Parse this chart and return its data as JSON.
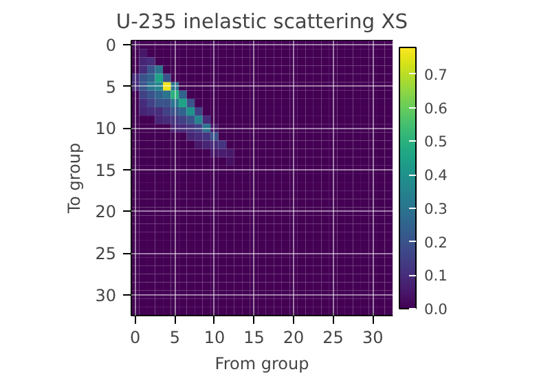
{
  "chart_data": {
    "type": "heatmap",
    "title": "U-235 inelastic scattering XS",
    "xlabel": "From group",
    "ylabel": "To group",
    "categories": [
      "0",
      null,
      null,
      null,
      null,
      "5",
      null,
      null,
      null,
      null,
      "10",
      null,
      null,
      null,
      null,
      "15",
      null,
      null,
      null,
      null,
      "20",
      null,
      null,
      null,
      null,
      "25",
      null,
      null,
      null,
      null,
      "30",
      null,
      null
    ],
    "y_categories": [
      "0",
      null,
      null,
      null,
      null,
      "5",
      null,
      null,
      null,
      null,
      "10",
      null,
      null,
      null,
      null,
      "15",
      null,
      null,
      null,
      null,
      "20",
      null,
      null,
      null,
      null,
      "25",
      null,
      null,
      null,
      null,
      "30",
      null,
      null
    ],
    "cells": [
      [
        0.02,
        0,
        0,
        0,
        0,
        0,
        0,
        0,
        0,
        0,
        0,
        0,
        0,
        0,
        0,
        0,
        0,
        0,
        0,
        0,
        0,
        0,
        0,
        0,
        0,
        0,
        0,
        0,
        0,
        0,
        0,
        0,
        0
      ],
      [
        0,
        0.05,
        0,
        0,
        0,
        0,
        0,
        0,
        0,
        0,
        0,
        0,
        0,
        0,
        0,
        0,
        0,
        0,
        0,
        0,
        0,
        0,
        0,
        0,
        0,
        0,
        0,
        0,
        0,
        0,
        0,
        0,
        0
      ],
      [
        0,
        0.08,
        0.1,
        0,
        0,
        0,
        0,
        0,
        0,
        0,
        0,
        0,
        0,
        0,
        0,
        0,
        0,
        0,
        0,
        0,
        0,
        0,
        0,
        0,
        0,
        0,
        0,
        0,
        0,
        0,
        0,
        0,
        0
      ],
      [
        0,
        0.1,
        0.2,
        0.3,
        0,
        0,
        0,
        0,
        0,
        0,
        0,
        0,
        0,
        0,
        0,
        0,
        0,
        0,
        0,
        0,
        0,
        0,
        0,
        0,
        0,
        0,
        0,
        0,
        0,
        0,
        0,
        0,
        0
      ],
      [
        0.1,
        0.2,
        0.25,
        0.45,
        0.2,
        0,
        0,
        0,
        0,
        0,
        0,
        0,
        0,
        0,
        0,
        0,
        0,
        0,
        0,
        0,
        0,
        0,
        0,
        0,
        0,
        0,
        0,
        0,
        0,
        0,
        0,
        0,
        0
      ],
      [
        0.1,
        0.2,
        0.3,
        0.35,
        0.76,
        0.3,
        0,
        0,
        0,
        0,
        0,
        0,
        0,
        0,
        0,
        0,
        0,
        0,
        0,
        0,
        0,
        0,
        0,
        0,
        0,
        0,
        0,
        0,
        0,
        0,
        0,
        0,
        0
      ],
      [
        0,
        0.15,
        0.2,
        0.25,
        0.3,
        0.5,
        0.25,
        0,
        0,
        0,
        0,
        0,
        0,
        0,
        0,
        0,
        0,
        0,
        0,
        0,
        0,
        0,
        0,
        0,
        0,
        0,
        0,
        0,
        0,
        0,
        0,
        0,
        0
      ],
      [
        0,
        0.1,
        0.15,
        0.2,
        0.2,
        0.3,
        0.45,
        0.2,
        0,
        0,
        0,
        0,
        0,
        0,
        0,
        0,
        0,
        0,
        0,
        0,
        0,
        0,
        0,
        0,
        0,
        0,
        0,
        0,
        0,
        0,
        0,
        0,
        0
      ],
      [
        0,
        0.08,
        0.1,
        0.1,
        0.15,
        0.2,
        0.25,
        0.4,
        0.15,
        0,
        0,
        0,
        0,
        0,
        0,
        0,
        0,
        0,
        0,
        0,
        0,
        0,
        0,
        0,
        0,
        0,
        0,
        0,
        0,
        0,
        0,
        0,
        0
      ],
      [
        0,
        0,
        0,
        0.08,
        0.1,
        0.12,
        0.15,
        0.2,
        0.35,
        0.1,
        0,
        0,
        0,
        0,
        0,
        0,
        0,
        0,
        0,
        0,
        0,
        0,
        0,
        0,
        0,
        0,
        0,
        0,
        0,
        0,
        0,
        0,
        0
      ],
      [
        0,
        0,
        0,
        0,
        0,
        0.08,
        0.1,
        0.12,
        0.15,
        0.3,
        0.05,
        0,
        0,
        0,
        0,
        0,
        0,
        0,
        0,
        0,
        0,
        0,
        0,
        0,
        0,
        0,
        0,
        0,
        0,
        0,
        0,
        0,
        0
      ],
      [
        0,
        0,
        0,
        0,
        0,
        0,
        0,
        0.08,
        0.1,
        0.12,
        0.2,
        0,
        0,
        0,
        0,
        0,
        0,
        0,
        0,
        0,
        0,
        0,
        0,
        0,
        0,
        0,
        0,
        0,
        0,
        0,
        0,
        0,
        0
      ],
      [
        0,
        0,
        0,
        0,
        0,
        0,
        0,
        0,
        0.05,
        0.08,
        0.1,
        0.12,
        0,
        0,
        0,
        0,
        0,
        0,
        0,
        0,
        0,
        0,
        0,
        0,
        0,
        0,
        0,
        0,
        0,
        0,
        0,
        0,
        0
      ],
      [
        0,
        0,
        0,
        0,
        0,
        0,
        0,
        0,
        0,
        0,
        0.05,
        0.06,
        0.05,
        0,
        0,
        0,
        0,
        0,
        0,
        0,
        0,
        0,
        0,
        0,
        0,
        0,
        0,
        0,
        0,
        0,
        0,
        0,
        0
      ],
      [
        0,
        0,
        0,
        0,
        0,
        0,
        0,
        0,
        0,
        0,
        0,
        0,
        0.03,
        0,
        0,
        0,
        0,
        0,
        0,
        0,
        0,
        0,
        0,
        0,
        0,
        0,
        0,
        0,
        0,
        0,
        0,
        0,
        0
      ],
      [
        0,
        0,
        0,
        0,
        0,
        0,
        0,
        0,
        0,
        0,
        0,
        0,
        0,
        0,
        0,
        0,
        0,
        0,
        0,
        0,
        0,
        0,
        0,
        0,
        0,
        0,
        0,
        0,
        0,
        0,
        0,
        0,
        0
      ],
      [
        0,
        0,
        0,
        0,
        0,
        0,
        0,
        0,
        0,
        0,
        0,
        0,
        0,
        0,
        0,
        0,
        0,
        0,
        0,
        0,
        0,
        0,
        0,
        0,
        0,
        0,
        0,
        0,
        0,
        0,
        0,
        0,
        0
      ],
      [
        0,
        0,
        0,
        0,
        0,
        0,
        0,
        0,
        0,
        0,
        0,
        0,
        0,
        0,
        0,
        0,
        0,
        0,
        0,
        0,
        0,
        0,
        0,
        0,
        0,
        0,
        0,
        0,
        0,
        0,
        0,
        0,
        0
      ],
      [
        0,
        0,
        0,
        0,
        0,
        0,
        0,
        0,
        0,
        0,
        0,
        0,
        0,
        0,
        0,
        0,
        0,
        0,
        0,
        0,
        0,
        0,
        0,
        0,
        0,
        0,
        0,
        0,
        0,
        0,
        0,
        0,
        0
      ],
      [
        0,
        0,
        0,
        0,
        0,
        0,
        0,
        0,
        0,
        0,
        0,
        0,
        0,
        0,
        0,
        0,
        0,
        0,
        0,
        0,
        0,
        0,
        0,
        0,
        0,
        0,
        0,
        0,
        0,
        0,
        0,
        0,
        0
      ],
      [
        0,
        0,
        0,
        0,
        0,
        0,
        0,
        0,
        0,
        0,
        0,
        0,
        0,
        0,
        0,
        0,
        0,
        0,
        0,
        0,
        0,
        0,
        0,
        0,
        0,
        0,
        0,
        0,
        0,
        0,
        0,
        0,
        0
      ],
      [
        0,
        0,
        0,
        0,
        0,
        0,
        0,
        0,
        0,
        0,
        0,
        0,
        0,
        0,
        0,
        0,
        0,
        0,
        0,
        0,
        0,
        0,
        0,
        0,
        0,
        0,
        0,
        0,
        0,
        0,
        0,
        0,
        0
      ],
      [
        0,
        0,
        0,
        0,
        0,
        0,
        0,
        0,
        0,
        0,
        0,
        0,
        0,
        0,
        0,
        0,
        0,
        0,
        0,
        0,
        0,
        0,
        0,
        0,
        0,
        0,
        0,
        0,
        0,
        0,
        0,
        0,
        0
      ],
      [
        0,
        0,
        0,
        0,
        0,
        0,
        0,
        0,
        0,
        0,
        0,
        0,
        0,
        0,
        0,
        0,
        0,
        0,
        0,
        0,
        0,
        0,
        0,
        0,
        0,
        0,
        0,
        0,
        0,
        0,
        0,
        0,
        0
      ],
      [
        0,
        0,
        0,
        0,
        0,
        0,
        0,
        0,
        0,
        0,
        0,
        0,
        0,
        0,
        0,
        0,
        0,
        0,
        0,
        0,
        0,
        0,
        0,
        0,
        0,
        0,
        0,
        0,
        0,
        0,
        0,
        0,
        0
      ],
      [
        0,
        0,
        0,
        0,
        0,
        0,
        0,
        0,
        0,
        0,
        0,
        0,
        0,
        0,
        0,
        0,
        0,
        0,
        0,
        0,
        0,
        0,
        0,
        0,
        0,
        0,
        0,
        0,
        0,
        0,
        0,
        0,
        0
      ],
      [
        0,
        0,
        0,
        0,
        0,
        0,
        0,
        0,
        0,
        0,
        0,
        0,
        0,
        0,
        0,
        0,
        0,
        0,
        0,
        0,
        0,
        0,
        0,
        0,
        0,
        0,
        0,
        0,
        0,
        0,
        0,
        0,
        0
      ],
      [
        0,
        0,
        0,
        0,
        0,
        0,
        0,
        0,
        0,
        0,
        0,
        0,
        0,
        0,
        0,
        0,
        0,
        0,
        0,
        0,
        0,
        0,
        0,
        0,
        0,
        0,
        0,
        0,
        0,
        0,
        0,
        0,
        0
      ],
      [
        0,
        0,
        0,
        0,
        0,
        0,
        0,
        0,
        0,
        0,
        0,
        0,
        0,
        0,
        0,
        0,
        0,
        0,
        0,
        0,
        0,
        0,
        0,
        0,
        0,
        0,
        0,
        0,
        0,
        0,
        0,
        0,
        0
      ],
      [
        0,
        0,
        0,
        0,
        0,
        0,
        0,
        0,
        0,
        0,
        0,
        0,
        0,
        0,
        0,
        0,
        0,
        0,
        0,
        0,
        0,
        0,
        0,
        0,
        0,
        0,
        0,
        0,
        0,
        0,
        0,
        0,
        0
      ],
      [
        0,
        0,
        0,
        0,
        0,
        0,
        0,
        0,
        0,
        0,
        0,
        0,
        0,
        0,
        0,
        0,
        0,
        0,
        0,
        0,
        0,
        0,
        0,
        0,
        0,
        0,
        0,
        0,
        0,
        0,
        0,
        0,
        0
      ],
      [
        0,
        0,
        0,
        0,
        0,
        0,
        0,
        0,
        0,
        0,
        0,
        0,
        0,
        0,
        0,
        0,
        0,
        0,
        0,
        0,
        0,
        0,
        0,
        0,
        0,
        0,
        0,
        0,
        0,
        0,
        0,
        0,
        0
      ],
      [
        0,
        0,
        0,
        0,
        0,
        0,
        0,
        0,
        0,
        0,
        0,
        0,
        0,
        0,
        0,
        0,
        0,
        0,
        0,
        0,
        0,
        0,
        0,
        0,
        0,
        0,
        0,
        0,
        0,
        0,
        0,
        0,
        0
      ]
    ],
    "clim": [
      0,
      0.78
    ],
    "cticks": [
      {
        "value": 0,
        "label": "0.0"
      },
      {
        "value": 0.1,
        "label": "0.1"
      },
      {
        "value": 0.2,
        "label": "0.2"
      },
      {
        "value": 0.3,
        "label": "0.3"
      },
      {
        "value": 0.4,
        "label": "0.4"
      },
      {
        "value": 0.5,
        "label": "0.5"
      },
      {
        "value": 0.6,
        "label": "0.6"
      },
      {
        "value": 0.7,
        "label": "0.7"
      }
    ],
    "grid": true
  }
}
